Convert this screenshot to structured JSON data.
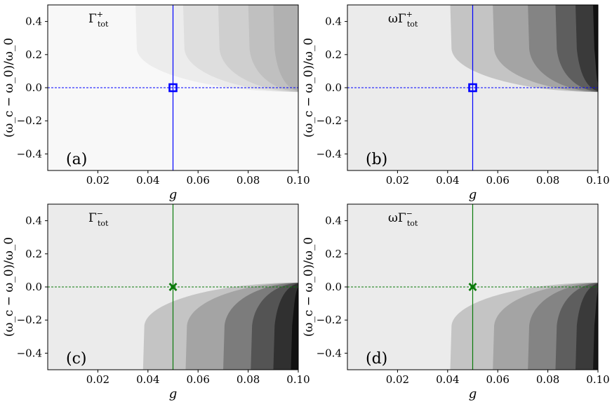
{
  "chart_data": [
    {
      "type": "contour",
      "panel": "a",
      "panel_label": "(a)",
      "inset_label": {
        "base": "Γ",
        "sup": "+",
        "sub": "tot"
      },
      "xlabel": "g",
      "ylabel": "(ω_c − ω_0)/ω_0",
      "xlim": [
        0.0,
        0.1
      ],
      "ylim": [
        -0.5,
        0.5
      ],
      "xticks": [
        "0.02",
        "0.04",
        "0.06",
        "0.08",
        "0.10"
      ],
      "yticks": [
        "−0.4",
        "−0.2",
        "0.0",
        "0.2",
        "0.4"
      ],
      "background_level": "#f8f8f8",
      "levels": [
        "#ececec",
        "#dedede",
        "#cfcfcf",
        "#c0c0c0",
        "#b1b1b1"
      ],
      "contour_direction": "up",
      "contour_onset_g": [
        0.035,
        0.054,
        0.068,
        0.08,
        0.09
      ],
      "marker": {
        "shape": "square",
        "g": 0.05,
        "y": 0.0,
        "color": "#0000ff"
      },
      "vline_g": 0.05,
      "hline_y": 0.0,
      "line_color": "#0000ff"
    },
    {
      "type": "contour",
      "panel": "b",
      "panel_label": "(b)",
      "inset_label": {
        "base": "ωΓ",
        "sup": "+",
        "sub": "tot"
      },
      "xlabel": "g",
      "ylabel": "(ω_c − ω_0)/ω_0",
      "xlim": [
        0.0,
        0.1
      ],
      "ylim": [
        -0.5,
        0.5
      ],
      "xticks": [
        "0.02",
        "0.04",
        "0.06",
        "0.08",
        "0.10"
      ],
      "yticks": [
        "−0.4",
        "−0.2",
        "0.0",
        "0.2",
        "0.4"
      ],
      "background_level": "#ebebeb",
      "levels": [
        "#c4c4c4",
        "#a4a4a4",
        "#848484",
        "#5e5e5e",
        "#3a3a3a",
        "#111111"
      ],
      "contour_direction": "up",
      "contour_onset_g": [
        0.041,
        0.058,
        0.072,
        0.083,
        0.091,
        0.098
      ],
      "marker": {
        "shape": "square",
        "g": 0.05,
        "y": 0.0,
        "color": "#0000ff"
      },
      "vline_g": 0.05,
      "hline_y": 0.0,
      "line_color": "#0000ff"
    },
    {
      "type": "contour",
      "panel": "c",
      "panel_label": "(c)",
      "inset_label": {
        "base": "Γ",
        "sup": "−",
        "sub": "tot"
      },
      "xlabel": "g",
      "ylabel": "(ω_c − ω_0)/ω_0",
      "xlim": [
        0.0,
        0.1
      ],
      "ylim": [
        -0.5,
        0.5
      ],
      "xticks": [
        "0.02",
        "0.04",
        "0.06",
        "0.08",
        "0.10"
      ],
      "yticks": [
        "−0.4",
        "−0.2",
        "0.0",
        "0.2",
        "0.4"
      ],
      "background_level": "#ebebeb",
      "levels": [
        "#c4c4c4",
        "#a4a4a4",
        "#7c7c7c",
        "#545454",
        "#303030",
        "#111111"
      ],
      "contour_direction": "down",
      "contour_onset_g": [
        0.038,
        0.055,
        0.07,
        0.081,
        0.09,
        0.097
      ],
      "marker": {
        "shape": "x",
        "g": 0.05,
        "y": 0.0,
        "color": "#0a7a0a"
      },
      "vline_g": 0.05,
      "hline_y": 0.0,
      "line_color": "#0a7a0a"
    },
    {
      "type": "contour",
      "panel": "d",
      "panel_label": "(d)",
      "inset_label": {
        "base": "ωΓ",
        "sup": "−",
        "sub": "tot"
      },
      "xlabel": "g",
      "ylabel": "(ω_c − ω_0)/ω_0",
      "xlim": [
        0.0,
        0.1
      ],
      "ylim": [
        -0.5,
        0.5
      ],
      "xticks": [
        "0.02",
        "0.04",
        "0.06",
        "0.08",
        "0.10"
      ],
      "yticks": [
        "−0.4",
        "−0.2",
        "0.0",
        "0.2",
        "0.4"
      ],
      "background_level": "#ebebeb",
      "levels": [
        "#c4c4c4",
        "#a4a4a4",
        "#848484",
        "#5e5e5e",
        "#3a3a3a",
        "#161616"
      ],
      "contour_direction": "down",
      "contour_onset_g": [
        0.041,
        0.058,
        0.072,
        0.083,
        0.091,
        0.098
      ],
      "marker": {
        "shape": "x",
        "g": 0.05,
        "y": 0.0,
        "color": "#0a7a0a"
      },
      "vline_g": 0.05,
      "hline_y": 0.0,
      "line_color": "#0a7a0a"
    }
  ]
}
